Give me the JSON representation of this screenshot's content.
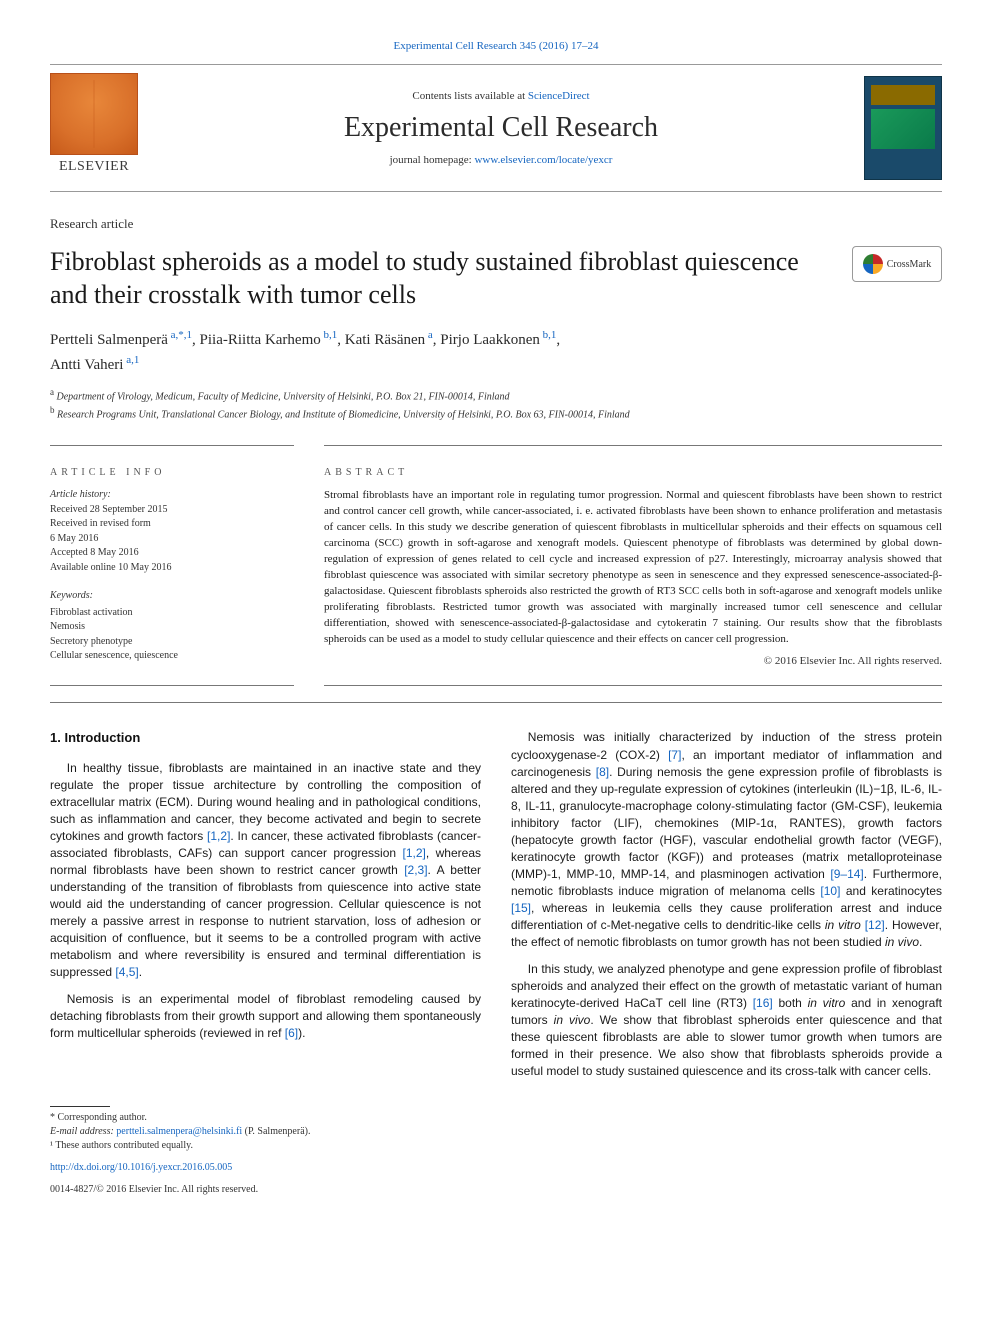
{
  "colors": {
    "link": "#1565c0",
    "text": "#1a1a1a",
    "rule": "#777777",
    "elsevier_orange": "#d9702a"
  },
  "topline": {
    "text": "Experimental Cell Research 345 (2016) 17–24"
  },
  "masthead": {
    "elsevier_label": "ELSEVIER",
    "contents_prefix": "Contents lists available at ",
    "contents_link_text": "ScienceDirect",
    "journal_name": "Experimental Cell Research",
    "homepage_prefix": "journal homepage: ",
    "homepage_url": "www.elsevier.com/locate/yexcr"
  },
  "article_type": "Research article",
  "title": "Fibroblast spheroids as a model to study sustained fibroblast quiescence and their crosstalk with tumor cells",
  "crossmark_label": "CrossMark",
  "authors_html": "Pertteli Salmenperä<span class='aff'> a,*,1</span>, Piia-Riitta Karhemo<span class='aff'> b,1</span>, Kati Räsänen<span class='aff'> a</span>, Pirjo Laakkonen<span class='aff'> b,1</span>,<br>Antti Vaheri<span class='aff'> a,1</span>",
  "affiliations": [
    {
      "label": "a",
      "text": "Department of Virology, Medicum, Faculty of Medicine, University of Helsinki, P.O. Box 21, FIN-00014, Finland"
    },
    {
      "label": "b",
      "text": "Research Programs Unit, Translational Cancer Biology, and Institute of Biomedicine, University of Helsinki, P.O. Box 63, FIN-00014, Finland"
    }
  ],
  "article_info": {
    "heading": "article info",
    "history_label": "Article history:",
    "history": [
      "Received 28 September 2015",
      "Received in revised form",
      "6 May 2016",
      "Accepted 8 May 2016",
      "Available online 10 May 2016"
    ],
    "keywords_label": "Keywords:",
    "keywords": [
      "Fibroblast activation",
      "Nemosis",
      "Secretory phenotype",
      "Cellular senescence, quiescence"
    ]
  },
  "abstract": {
    "heading": "abstract",
    "text": "Stromal fibroblasts have an important role in regulating tumor progression. Normal and quiescent fibroblasts have been shown to restrict and control cancer cell growth, while cancer-associated, i. e. activated fibroblasts have been shown to enhance proliferation and metastasis of cancer cells. In this study we describe generation of quiescent fibroblasts in multicellular spheroids and their effects on squamous cell carcinoma (SCC) growth in soft-agarose and xenograft models. Quiescent phenotype of fibroblasts was determined by global down-regulation of expression of genes related to cell cycle and increased expression of p27. Interestingly, microarray analysis showed that fibroblast quiescence was associated with similar secretory phenotype as seen in senescence and they expressed senescence-associated-β-galactosidase. Quiescent fibroblasts spheroids also restricted the growth of RT3 SCC cells both in soft-agarose and xenograft models unlike proliferating fibroblasts. Restricted tumor growth was associated with marginally increased tumor cell senescence and cellular differentiation, showed with senescence-associated-β-galactosidase and cytokeratin 7 staining. Our results show that the fibroblasts spheroids can be used as a model to study cellular quiescence and their effects on cancer cell progression.",
    "copyright": "© 2016 Elsevier Inc. All rights reserved."
  },
  "body": {
    "section_heading": "1. Introduction",
    "p1": "In healthy tissue, fibroblasts are maintained in an inactive state and they regulate the proper tissue architecture by controlling the composition of extracellular matrix (ECM). During wound healing and in pathological conditions, such as inflammation and cancer, they become activated and begin to secrete cytokines and growth factors [1,2]. In cancer, these activated fibroblasts (cancer-associated fibroblasts, CAFs) can support cancer progression [1,2], whereas normal fibroblasts have been shown to restrict cancer growth [2,3]. A better understanding of the transition of fibroblasts from quiescence into active state would aid the understanding of cancer progression. Cellular quiescence is not merely a passive arrest in response to nutrient starvation, loss of adhesion or acquisition of confluence, but it seems to be a controlled program with active metabolism and where reversibility is ensured and terminal differentiation is suppressed [4,5].",
    "p2": "Nemosis is an experimental model of fibroblast remodeling caused by detaching fibroblasts from their growth support and allowing them spontaneously form multicellular spheroids (reviewed in ref [6]).",
    "p3": "Nemosis was initially characterized by induction of the stress protein cyclooxygenase-2 (COX-2) [7], an important mediator of inflammation and carcinogenesis [8]. During nemosis the gene expression profile of fibroblasts is altered and they up-regulate expression of cytokines (interleukin (IL)−1β, IL-6, IL-8, IL-11, granulocyte-macrophage colony-stimulating factor (GM-CSF), leukemia inhibitory factor (LIF), chemokines (MIP-1α, RANTES), growth factors (hepatocyte growth factor (HGF), vascular endothelial growth factor (VEGF), keratinocyte growth factor (KGF)) and proteases (matrix metalloproteinase (MMP)-1, MMP-10, MMP-14, and plasminogen activation [9–14]. Furthermore, nemotic fibroblasts induce migration of melanoma cells [10] and keratinocytes [15], whereas in leukemia cells they cause proliferation arrest and induce differentiation of c-Met-negative cells to dendritic-like cells in vitro [12]. However, the effect of nemotic fibroblasts on tumor growth has not been studied in vivo.",
    "p4": "In this study, we analyzed phenotype and gene expression profile of fibroblast spheroids and analyzed their effect on the growth of metastatic variant of human keratinocyte-derived HaCaT cell line (RT3) [16] both in vitro and in xenograft tumors in vivo. We show that fibroblast spheroids enter quiescence and that these quiescent fibroblasts are able to slower tumor growth when tumors are formed in their presence. We also show that fibroblasts spheroids provide a useful model to study sustained quiescence and its cross-talk with cancer cells.",
    "refs": [
      "[1,2]",
      "[1,2]",
      "[2,3]",
      "[4,5]",
      "[6]",
      "[7]",
      "[8]",
      "[9–14]",
      "[10]",
      "[15]",
      "[12]",
      "[16]"
    ]
  },
  "footnotes": {
    "corr_label": "* Corresponding author.",
    "email_label": "E-mail address: ",
    "email": "pertteli.salmenpera@helsinki.fi",
    "email_suffix": " (P. Salmenperä).",
    "equal_label": "¹ These authors contributed equally.",
    "doi": "http://dx.doi.org/10.1016/j.yexcr.2016.05.005",
    "issn_line": "0014-4827/© 2016 Elsevier Inc. All rights reserved."
  }
}
